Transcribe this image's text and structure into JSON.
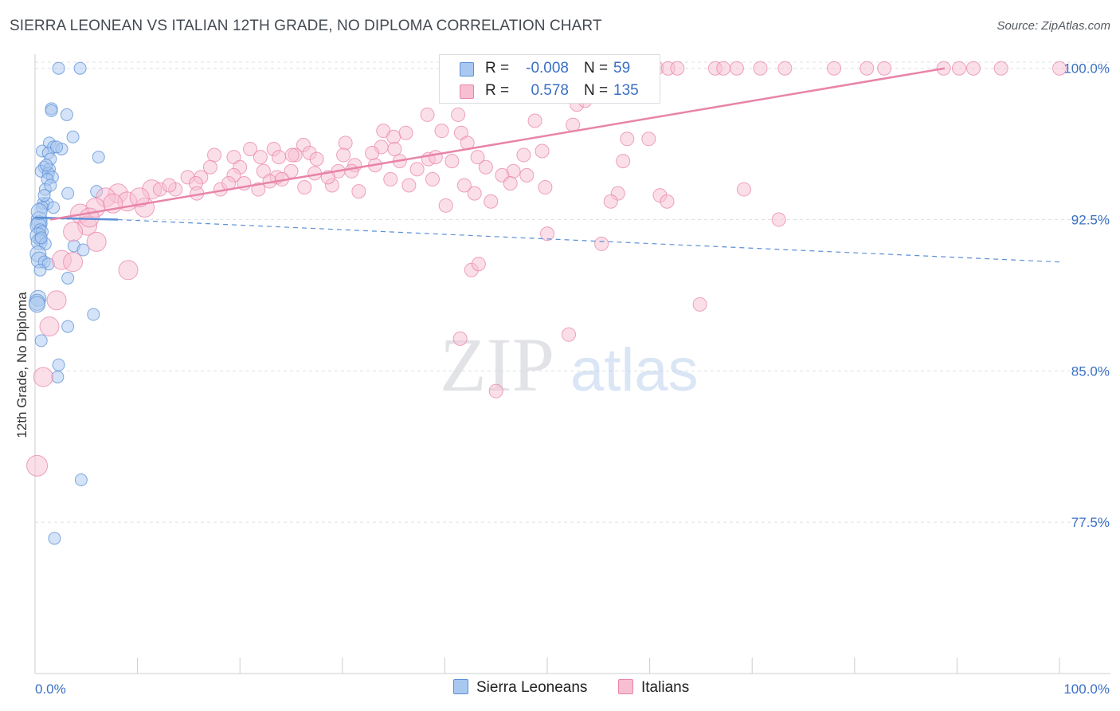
{
  "header": {
    "title": "SIERRA LEONEAN VS ITALIAN 12TH GRADE, NO DIPLOMA CORRELATION CHART",
    "source": "Source: ZipAtlas.com"
  },
  "watermark": {
    "zip": "ZIP",
    "atlas": "atlas"
  },
  "legend_top": {
    "rows": [
      {
        "r_label": "R =",
        "r_value": "-0.008",
        "n_label": "N =",
        "n_value": "59",
        "color": "#a9c8f0",
        "stroke": "#5b8fd6"
      },
      {
        "r_label": "R =",
        "r_value": "0.578",
        "n_label": "N =",
        "n_value": "135",
        "color": "#f8bfd2",
        "stroke": "#e884a9"
      }
    ]
  },
  "legend_bottom": {
    "items": [
      {
        "label": "Sierra Leoneans",
        "color": "#a9c8f0",
        "stroke": "#5b8fd6"
      },
      {
        "label": "Italians",
        "color": "#f8bfd2",
        "stroke": "#e884a9"
      }
    ]
  },
  "chart_data": {
    "type": "scatter",
    "title": "SIERRA LEONEAN VS ITALIAN 12TH GRADE, NO DIPLOMA CORRELATION CHART",
    "xlabel": "",
    "ylabel": "12th Grade, No Diploma",
    "xlim": [
      0,
      100
    ],
    "ylim": [
      70,
      100.7
    ],
    "x_tick_labels": [
      "0.0%",
      "100.0%"
    ],
    "y_ticks": [
      100.0,
      92.5,
      85.0,
      77.5
    ],
    "y_tick_labels": [
      "100.0%",
      "92.5%",
      "85.0%",
      "77.5%"
    ],
    "grid": true,
    "series": [
      {
        "name": "Sierra Leoneans",
        "color": "#5b8fd6",
        "fill": "#a9c8f0",
        "r": -0.008,
        "n": 59,
        "trend": {
          "solid": [
            [
              0,
              92.6
            ],
            [
              8.1,
              92.5
            ]
          ],
          "dashed": [
            [
              8.1,
              92.5
            ],
            [
              100,
              90.4
            ]
          ]
        },
        "points": [
          [
            2.3,
            100.0
          ],
          [
            4.4,
            100.0
          ],
          [
            1.6,
            98.0
          ],
          [
            1.6,
            97.9
          ],
          [
            3.1,
            97.7
          ],
          [
            3.7,
            96.6
          ],
          [
            1.4,
            96.3
          ],
          [
            1.8,
            96.1
          ],
          [
            2.6,
            96.0
          ],
          [
            0.7,
            95.9
          ],
          [
            1.3,
            95.8
          ],
          [
            1.5,
            95.5
          ],
          [
            6.2,
            95.6
          ],
          [
            0.9,
            95.1
          ],
          [
            1.4,
            95.0
          ],
          [
            0.6,
            94.9
          ],
          [
            1.3,
            94.8
          ],
          [
            1.7,
            94.6
          ],
          [
            1.2,
            94.5
          ],
          [
            1.0,
            94.0
          ],
          [
            3.2,
            93.8
          ],
          [
            6.0,
            93.9
          ],
          [
            0.8,
            93.3
          ],
          [
            1.2,
            93.3
          ],
          [
            0.7,
            93.1
          ],
          [
            1.8,
            93.1
          ],
          [
            0.4,
            92.5
          ],
          [
            0.4,
            92.3
          ],
          [
            0.3,
            92.2
          ],
          [
            0.5,
            92.0
          ],
          [
            0.7,
            91.9
          ],
          [
            0.3,
            91.7
          ],
          [
            0.5,
            91.5
          ],
          [
            0.4,
            91.4
          ],
          [
            1.0,
            91.3
          ],
          [
            3.8,
            91.2
          ],
          [
            4.7,
            91.0
          ],
          [
            0.3,
            90.8
          ],
          [
            0.4,
            90.5
          ],
          [
            0.9,
            90.4
          ],
          [
            1.3,
            90.3
          ],
          [
            0.5,
            90.0
          ],
          [
            3.2,
            89.6
          ],
          [
            0.3,
            88.6
          ],
          [
            0.2,
            88.4
          ],
          [
            5.7,
            87.8
          ],
          [
            3.2,
            87.2
          ],
          [
            0.6,
            86.5
          ],
          [
            2.3,
            85.3
          ],
          [
            2.2,
            84.7
          ],
          [
            4.5,
            79.6
          ],
          [
            1.9,
            76.7
          ],
          [
            0.2,
            88.3
          ],
          [
            0.6,
            91.6
          ],
          [
            1.1,
            95.2
          ],
          [
            2.1,
            96.1
          ],
          [
            0.9,
            93.7
          ],
          [
            0.4,
            92.9
          ],
          [
            1.5,
            94.2
          ]
        ]
      },
      {
        "name": "Italians",
        "color": "#e884a9",
        "fill": "#f8bfd2",
        "r": 0.578,
        "n": 135,
        "trend": {
          "solid": [
            [
              1.5,
              92.5
            ],
            [
              88.8,
              100.0
            ]
          ]
        },
        "points": [
          [
            52.0,
            100.0
          ],
          [
            53.3,
            100.0
          ],
          [
            53.7,
            100.0
          ],
          [
            54.4,
            100.0
          ],
          [
            55.4,
            100.0
          ],
          [
            56.5,
            100.0
          ],
          [
            57.6,
            100.0
          ],
          [
            59.4,
            100.0
          ],
          [
            60.7,
            100.0
          ],
          [
            61.8,
            100.0
          ],
          [
            62.7,
            100.0
          ],
          [
            66.4,
            100.0
          ],
          [
            67.2,
            100.0
          ],
          [
            68.5,
            100.0
          ],
          [
            70.8,
            100.0
          ],
          [
            73.2,
            100.0
          ],
          [
            78.0,
            100.0
          ],
          [
            81.2,
            100.0
          ],
          [
            82.9,
            100.0
          ],
          [
            88.7,
            100.0
          ],
          [
            90.2,
            100.0
          ],
          [
            91.6,
            100.0
          ],
          [
            94.3,
            100.0
          ],
          [
            100.0,
            100.0
          ],
          [
            54.9,
            98.8
          ],
          [
            52.9,
            98.2
          ],
          [
            53.7,
            98.4
          ],
          [
            38.3,
            97.7
          ],
          [
            41.3,
            97.7
          ],
          [
            48.8,
            97.4
          ],
          [
            39.7,
            96.9
          ],
          [
            52.5,
            97.2
          ],
          [
            34.0,
            96.9
          ],
          [
            36.2,
            96.8
          ],
          [
            41.6,
            96.8
          ],
          [
            42.2,
            96.3
          ],
          [
            35.0,
            96.6
          ],
          [
            30.3,
            96.3
          ],
          [
            26.2,
            96.2
          ],
          [
            21.0,
            96.0
          ],
          [
            23.3,
            96.0
          ],
          [
            26.8,
            95.8
          ],
          [
            33.8,
            96.1
          ],
          [
            35.1,
            96.0
          ],
          [
            57.8,
            96.5
          ],
          [
            59.9,
            96.5
          ],
          [
            17.5,
            95.7
          ],
          [
            19.4,
            95.6
          ],
          [
            22.0,
            95.6
          ],
          [
            23.8,
            95.6
          ],
          [
            25.4,
            95.7
          ],
          [
            27.5,
            95.5
          ],
          [
            30.1,
            95.7
          ],
          [
            31.2,
            95.2
          ],
          [
            33.2,
            95.2
          ],
          [
            38.4,
            95.5
          ],
          [
            40.7,
            95.4
          ],
          [
            43.2,
            95.6
          ],
          [
            47.7,
            95.7
          ],
          [
            49.5,
            95.9
          ],
          [
            57.4,
            95.4
          ],
          [
            17.1,
            95.1
          ],
          [
            20.0,
            95.1
          ],
          [
            22.3,
            94.9
          ],
          [
            25.0,
            94.9
          ],
          [
            29.6,
            94.9
          ],
          [
            14.9,
            94.6
          ],
          [
            16.2,
            94.6
          ],
          [
            19.4,
            94.7
          ],
          [
            23.6,
            94.6
          ],
          [
            46.7,
            94.9
          ],
          [
            48.0,
            94.7
          ],
          [
            15.7,
            94.3
          ],
          [
            20.4,
            94.3
          ],
          [
            22.9,
            94.4
          ],
          [
            11.4,
            94.0
          ],
          [
            12.2,
            94.0
          ],
          [
            13.7,
            94.0
          ],
          [
            18.1,
            94.0
          ],
          [
            26.3,
            94.1
          ],
          [
            29.0,
            94.2
          ],
          [
            31.6,
            93.9
          ],
          [
            42.9,
            93.8
          ],
          [
            49.8,
            94.1
          ],
          [
            56.9,
            93.8
          ],
          [
            61.0,
            93.7
          ],
          [
            8.1,
            93.8
          ],
          [
            6.9,
            93.6
          ],
          [
            9.0,
            93.4
          ],
          [
            5.9,
            93.1
          ],
          [
            10.7,
            93.1
          ],
          [
            4.4,
            92.8
          ],
          [
            5.1,
            92.2
          ],
          [
            72.6,
            92.5
          ],
          [
            69.2,
            94.0
          ],
          [
            40.1,
            93.2
          ],
          [
            44.5,
            93.4
          ],
          [
            61.7,
            93.4
          ],
          [
            50.0,
            91.8
          ],
          [
            3.7,
            91.9
          ],
          [
            6.0,
            91.4
          ],
          [
            2.6,
            90.5
          ],
          [
            3.7,
            90.4
          ],
          [
            55.3,
            91.3
          ],
          [
            42.6,
            90.0
          ],
          [
            43.3,
            90.3
          ],
          [
            9.1,
            90.0
          ],
          [
            2.1,
            88.5
          ],
          [
            64.9,
            88.3
          ],
          [
            1.4,
            87.2
          ],
          [
            41.5,
            86.6
          ],
          [
            52.1,
            86.8
          ],
          [
            0.8,
            84.7
          ],
          [
            45.0,
            84.0
          ],
          [
            0.2,
            80.3
          ],
          [
            25.1,
            95.7
          ],
          [
            28.6,
            94.6
          ],
          [
            32.9,
            95.8
          ],
          [
            35.6,
            95.4
          ],
          [
            37.3,
            95.0
          ],
          [
            39.1,
            95.6
          ],
          [
            44.0,
            95.1
          ],
          [
            45.6,
            94.7
          ],
          [
            46.4,
            94.3
          ],
          [
            13.1,
            94.2
          ],
          [
            10.2,
            93.6
          ],
          [
            7.6,
            93.3
          ],
          [
            5.3,
            92.6
          ],
          [
            15.8,
            93.8
          ],
          [
            18.9,
            94.3
          ],
          [
            21.8,
            94.0
          ],
          [
            24.1,
            94.5
          ],
          [
            27.3,
            94.8
          ],
          [
            30.9,
            94.9
          ],
          [
            34.7,
            94.5
          ],
          [
            36.5,
            94.2
          ],
          [
            38.8,
            94.5
          ],
          [
            41.9,
            94.2
          ],
          [
            56.2,
            93.4
          ]
        ]
      }
    ]
  }
}
